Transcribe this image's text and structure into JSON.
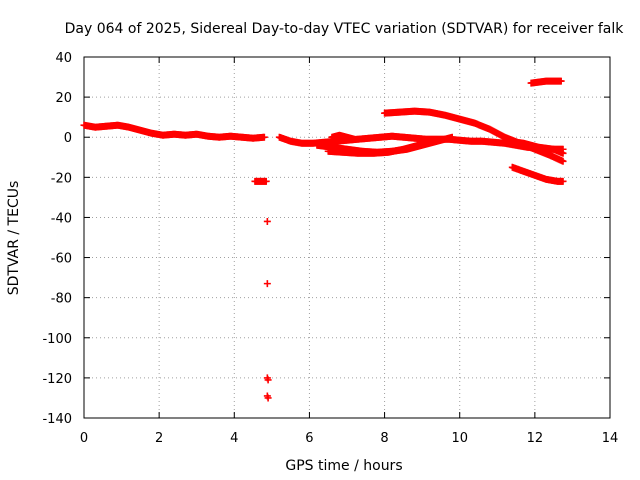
{
  "chart_data": {
    "type": "scatter",
    "title": "Day 064 of 2025, Sidereal Day-to-day VTEC variation (SDTVAR) for receiver falk",
    "xlabel": "GPS time / hours",
    "ylabel": "SDTVAR / TECUs",
    "xlim": [
      0,
      14
    ],
    "ylim": [
      -140,
      40
    ],
    "xticks": [
      0,
      2,
      4,
      6,
      8,
      10,
      12,
      14
    ],
    "yticks": [
      40,
      20,
      0,
      -20,
      -40,
      -60,
      -80,
      -100,
      -120,
      -140
    ],
    "xtick_labels": [
      "0",
      "2",
      "4",
      "6",
      "8",
      "10",
      "12",
      "14"
    ],
    "ytick_labels": [
      "40",
      "20",
      "0",
      "-20",
      "-40",
      "-60",
      "-80",
      "-100",
      "-120",
      "-140"
    ],
    "grid": true,
    "marker_color": "#ff0000",
    "series": [
      {
        "name": "satellite arcs",
        "segments": [
          {
            "x": [
              0.0,
              0.3,
              0.6,
              0.9,
              1.2,
              1.5,
              1.8,
              2.1,
              2.4,
              2.7,
              3.0,
              3.3,
              3.6,
              3.9,
              4.2,
              4.5,
              4.8
            ],
            "y": [
              6,
              5,
              5.5,
              6,
              5,
              3.5,
              2,
              1,
              1.5,
              1,
              1.5,
              0.5,
              0,
              0.5,
              0,
              -0.5,
              0
            ]
          },
          {
            "x": [
              4.55,
              4.65,
              4.75,
              4.85
            ],
            "y": [
              -22,
              -22,
              -22,
              -22
            ]
          },
          {
            "x": [
              4.88
            ],
            "y": [
              -42
            ]
          },
          {
            "x": [
              4.88
            ],
            "y": [
              -73
            ]
          },
          {
            "x": [
              4.88,
              4.9
            ],
            "y": [
              -120,
              -121
            ]
          },
          {
            "x": [
              4.88,
              4.9
            ],
            "y": [
              -129,
              -130
            ]
          },
          {
            "x": [
              5.2,
              5.5,
              5.8,
              6.1,
              6.4,
              6.7,
              7.0,
              7.3,
              7.6,
              7.9,
              8.2,
              8.5,
              8.8,
              9.1,
              9.4,
              9.7,
              10.0,
              10.3,
              10.6,
              10.9,
              11.2,
              11.5,
              11.8,
              12.1,
              12.4,
              12.75
            ],
            "y": [
              0,
              -2,
              -3,
              -3,
              -2.5,
              -2,
              -1.5,
              -1,
              -0.5,
              0,
              0.5,
              0,
              -0.5,
              -1,
              -1,
              -1,
              -1.5,
              -2,
              -2,
              -2.5,
              -3,
              -4,
              -5,
              -5.5,
              -6,
              -6
            ]
          },
          {
            "x": [
              6.2,
              6.6,
              7.0,
              7.4,
              7.8,
              8.2,
              8.6,
              9.0,
              9.4,
              9.8
            ],
            "y": [
              -4,
              -5,
              -6,
              -7,
              -7.5,
              -7,
              -6,
              -4,
              -2,
              0
            ]
          },
          {
            "x": [
              6.5,
              6.9,
              7.3,
              7.7,
              8.1,
              8.5,
              8.9,
              9.3
            ],
            "y": [
              -7,
              -7.5,
              -8,
              -8,
              -7.5,
              -6,
              -4,
              -2
            ]
          },
          {
            "x": [
              6.6,
              6.8,
              7.0,
              7.2
            ],
            "y": [
              0,
              1,
              0,
              -1
            ]
          },
          {
            "x": [
              8.0,
              8.4,
              8.8,
              9.2,
              9.6,
              10.0,
              10.4,
              10.8,
              11.2,
              11.6,
              12.0,
              12.4,
              12.75
            ],
            "y": [
              12,
              12.5,
              13,
              12.5,
              11,
              9,
              7,
              4,
              0,
              -3,
              -6,
              -9,
              -12
            ]
          },
          {
            "x": [
              11.9,
              12.1,
              12.3,
              12.5,
              12.7
            ],
            "y": [
              27,
              27.5,
              28,
              28,
              28
            ]
          },
          {
            "x": [
              11.4,
              11.7,
              12.0,
              12.3,
              12.6,
              12.75
            ],
            "y": [
              -15,
              -17,
              -19,
              -21,
              -22,
              -22
            ]
          },
          {
            "x": [
              11.3,
              11.7,
              12.1,
              12.5,
              12.75
            ],
            "y": [
              -2,
              -3,
              -5,
              -6,
              -8
            ]
          }
        ]
      }
    ]
  }
}
